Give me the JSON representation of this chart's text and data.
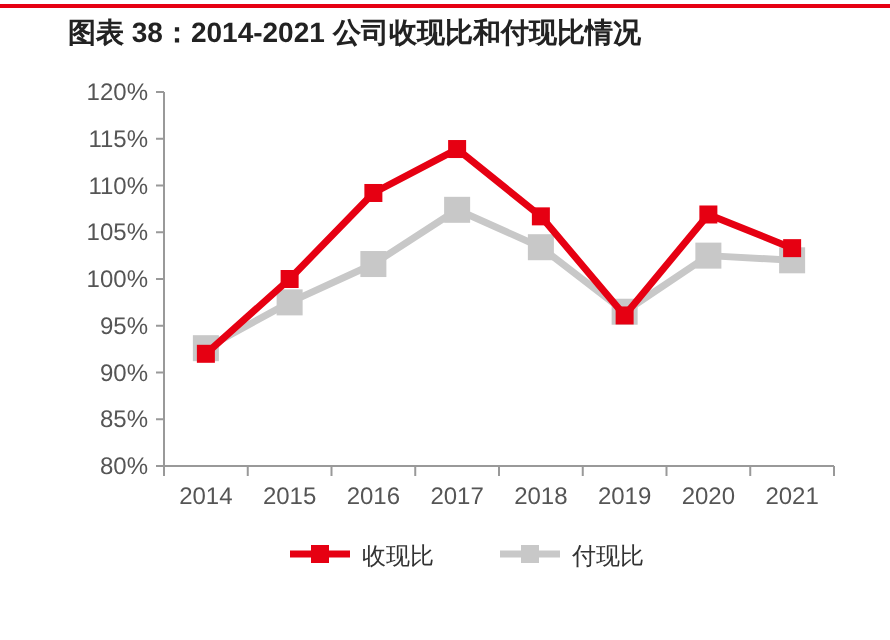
{
  "chart_data": {
    "type": "line",
    "title": "图表 38：2014-2021 公司收现比和付现比情况",
    "categories": [
      "2014",
      "2015",
      "2016",
      "2017",
      "2018",
      "2019",
      "2020",
      "2021"
    ],
    "series": [
      {
        "name": "收现比",
        "color": "#e60012",
        "values": [
          92.0,
          100.0,
          109.2,
          113.9,
          106.7,
          96.1,
          106.9,
          103.3
        ]
      },
      {
        "name": "付现比",
        "color": "#c8c8c8",
        "values": [
          92.6,
          97.5,
          101.6,
          107.4,
          103.4,
          96.5,
          102.5,
          102.0
        ]
      }
    ],
    "ylim": [
      80,
      120
    ],
    "yticks": [
      {
        "value": 80,
        "label": "80%"
      },
      {
        "value": 85,
        "label": "85%"
      },
      {
        "value": 90,
        "label": "90%"
      },
      {
        "value": 95,
        "label": "95%"
      },
      {
        "value": 100,
        "label": "100%"
      },
      {
        "value": 105,
        "label": "105%"
      },
      {
        "value": 110,
        "label": "110%"
      },
      {
        "value": 115,
        "label": "115%"
      },
      {
        "value": 120,
        "label": "120%"
      }
    ],
    "marker": "square",
    "legend": "bottom",
    "grid": false
  }
}
